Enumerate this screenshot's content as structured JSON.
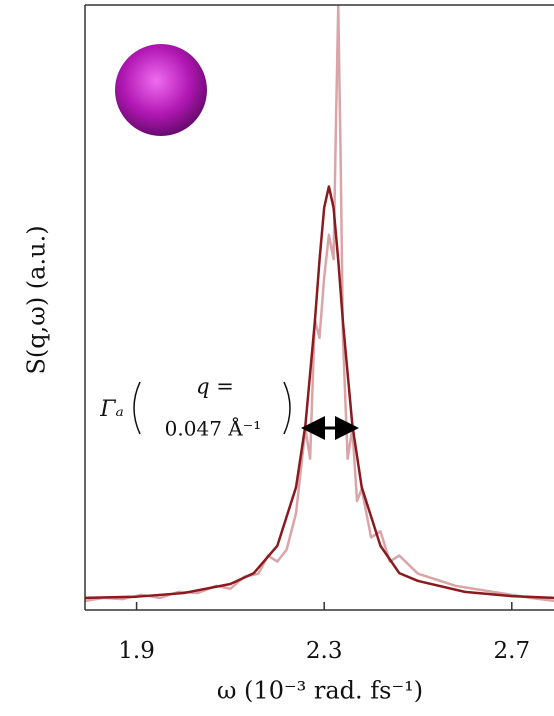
{
  "chart_data": {
    "type": "line",
    "xlabel": "ω (10⁻³ rad. fs⁻¹)",
    "ylabel": "S(q,ω) (a.u.)",
    "annotations": [
      "Γₐ",
      "q =",
      "0.047 Å⁻¹"
    ],
    "xlim": [
      1.79,
      2.79
    ],
    "ylim": [
      0,
      1.0
    ],
    "xticks": [
      1.9,
      2.3,
      2.7
    ],
    "series": [
      {
        "color": "#d9a5a8",
        "x": [
          1.79,
          1.83,
          1.87,
          1.91,
          1.95,
          1.99,
          2.03,
          2.07,
          2.1,
          2.13,
          2.16,
          2.18,
          2.2,
          2.22,
          2.24,
          2.26,
          2.27,
          2.28,
          2.29,
          2.3,
          2.31,
          2.32,
          2.325,
          2.33,
          2.335,
          2.34,
          2.35,
          2.36,
          2.37,
          2.38,
          2.4,
          2.42,
          2.44,
          2.46,
          2.5,
          2.54,
          2.58,
          2.62,
          2.66,
          2.7,
          2.74,
          2.79
        ],
        "values": [
          0.015,
          0.02,
          0.018,
          0.025,
          0.02,
          0.03,
          0.028,
          0.04,
          0.035,
          0.055,
          0.06,
          0.09,
          0.08,
          0.1,
          0.16,
          0.3,
          0.25,
          0.48,
          0.45,
          0.55,
          0.62,
          0.58,
          0.8,
          1.0,
          0.75,
          0.45,
          0.25,
          0.3,
          0.18,
          0.2,
          0.12,
          0.13,
          0.08,
          0.09,
          0.06,
          0.05,
          0.04,
          0.035,
          0.03,
          0.025,
          0.02,
          0.015
        ]
      },
      {
        "color": "#8b1a1f",
        "x": [
          1.79,
          1.9,
          2.0,
          2.1,
          2.15,
          2.2,
          2.24,
          2.26,
          2.28,
          2.29,
          2.3,
          2.31,
          2.32,
          2.33,
          2.34,
          2.36,
          2.38,
          2.42,
          2.46,
          2.5,
          2.6,
          2.7,
          2.79
        ],
        "values": [
          0.02,
          0.022,
          0.028,
          0.043,
          0.061,
          0.106,
          0.203,
          0.306,
          0.476,
          0.578,
          0.665,
          0.7,
          0.665,
          0.578,
          0.476,
          0.306,
          0.203,
          0.106,
          0.061,
          0.048,
          0.03,
          0.023,
          0.02
        ]
      }
    ]
  }
}
